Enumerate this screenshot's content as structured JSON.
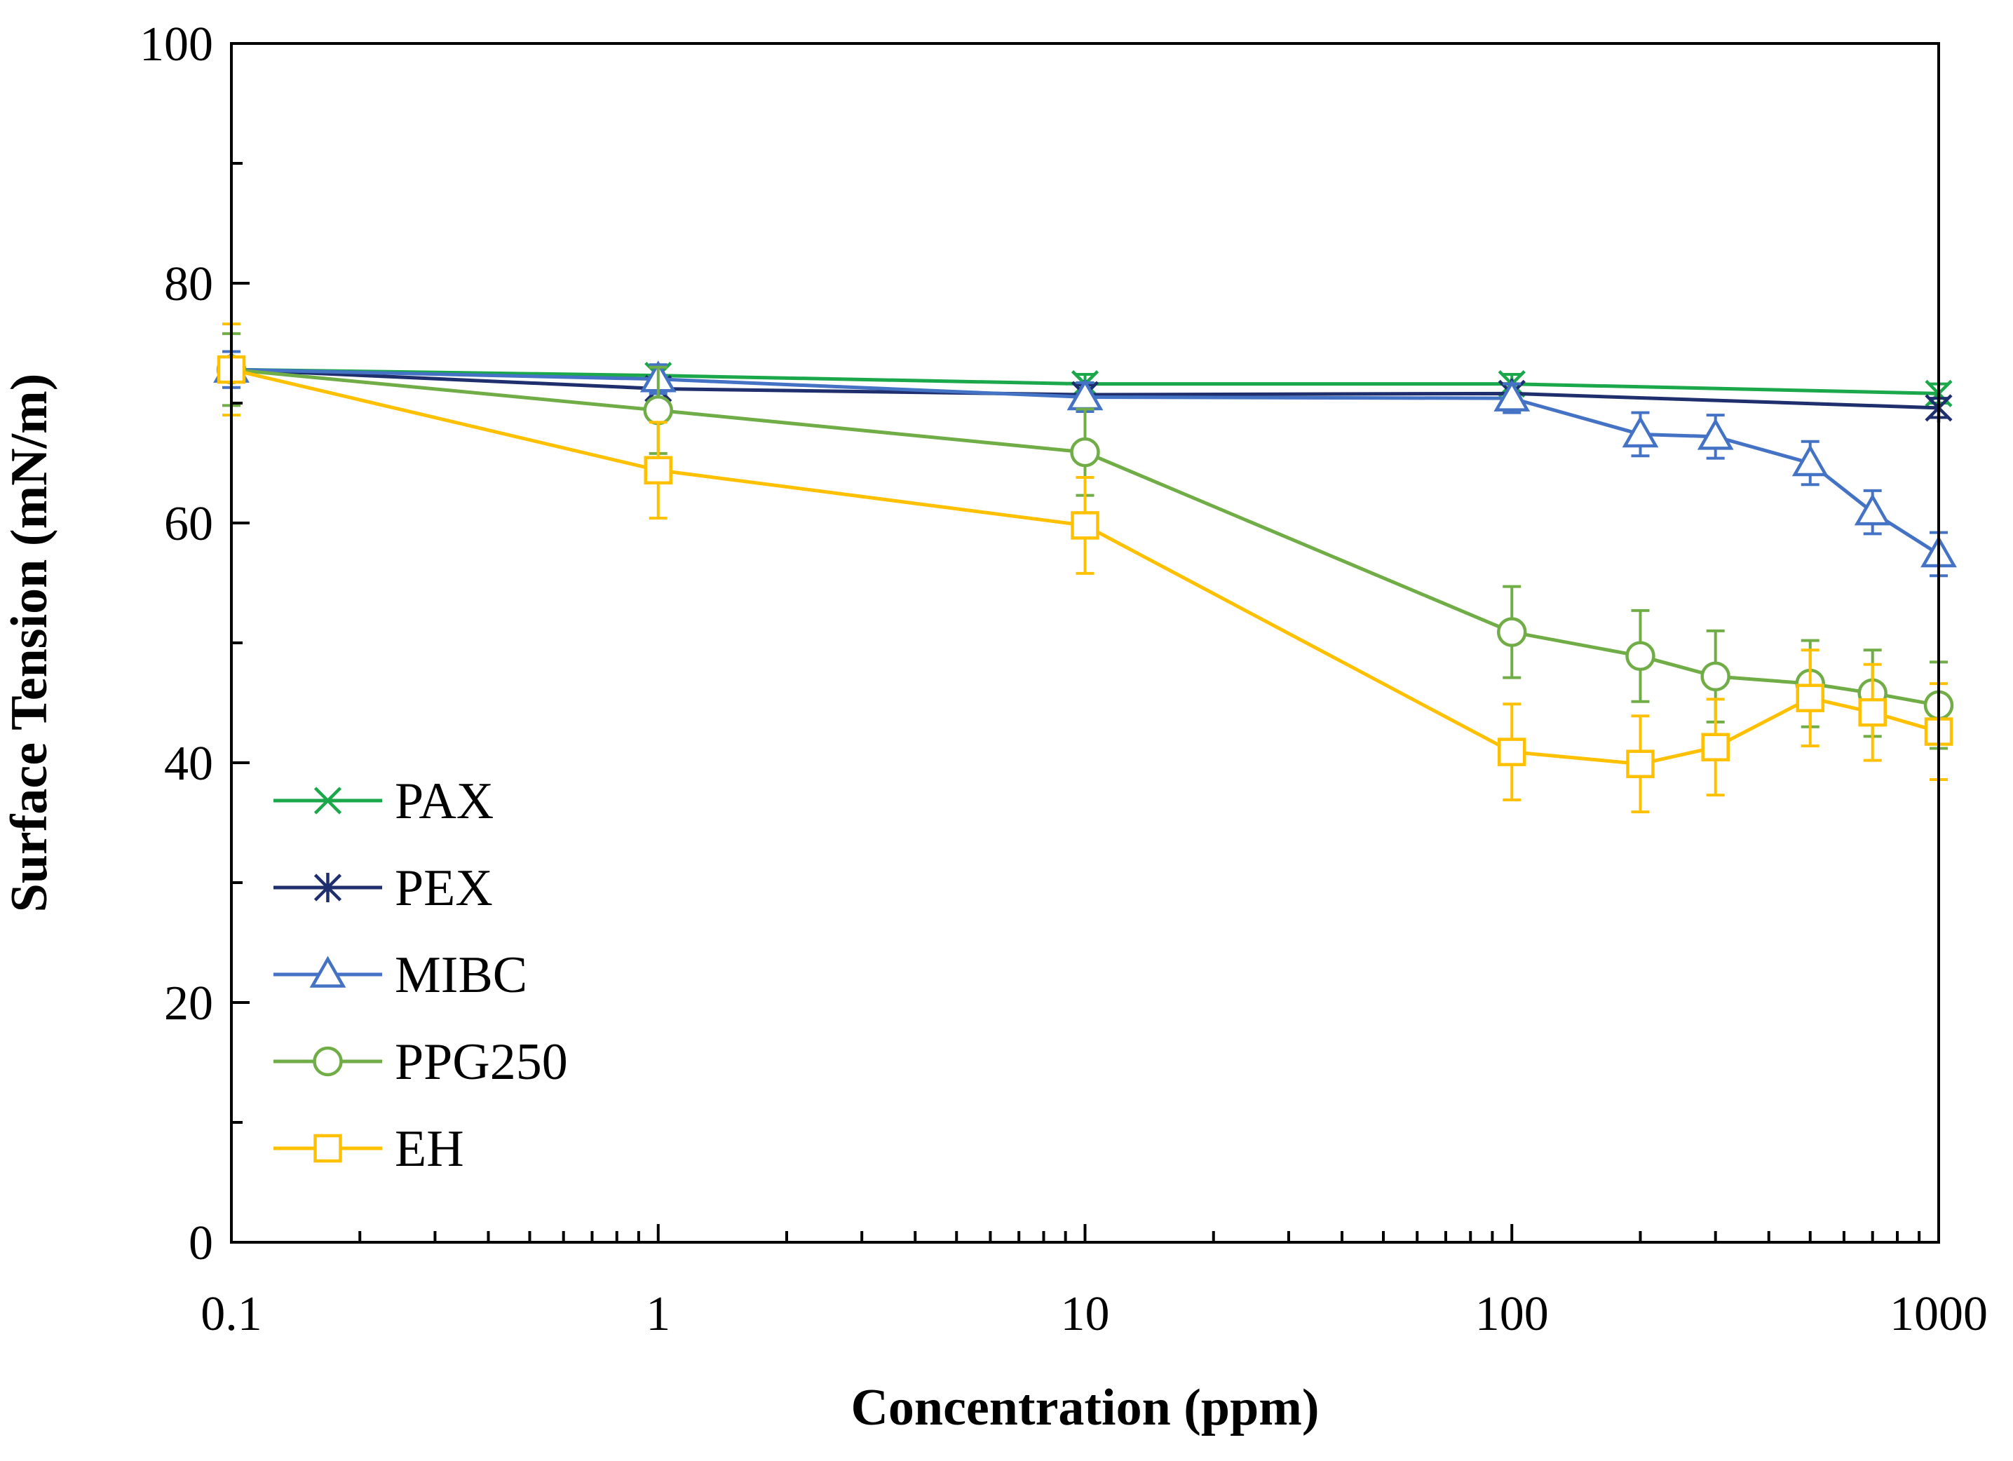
{
  "chart_data": {
    "type": "line",
    "title": "",
    "xlabel": "Concentration (ppm)",
    "ylabel": "Surface Tension (mN/m)",
    "xscale": "log",
    "xlim": [
      0.1,
      1000
    ],
    "ylim": [
      0,
      100
    ],
    "xticks": [
      {
        "value": 0.1,
        "label": "0.1"
      },
      {
        "value": 1,
        "label": "1"
      },
      {
        "value": 10,
        "label": "10"
      },
      {
        "value": 100,
        "label": "100"
      },
      {
        "value": 1000,
        "label": "1000"
      }
    ],
    "yticks": [
      {
        "value": 0,
        "label": "0"
      },
      {
        "value": 20,
        "label": "20"
      },
      {
        "value": 40,
        "label": "40"
      },
      {
        "value": 60,
        "label": "60"
      },
      {
        "value": 80,
        "label": "80"
      },
      {
        "value": 100,
        "label": "100"
      }
    ],
    "y_minor_step": 10,
    "grid": false,
    "legend_position": "bottom-left",
    "series": [
      {
        "name": "PAX",
        "color": "#1aa84a",
        "marker": "x",
        "x": [
          0.1,
          1,
          10,
          100,
          1000
        ],
        "y": [
          72.8,
          72.3,
          71.6,
          71.6,
          70.8
        ],
        "err": [
          1.0,
          0.8,
          0.8,
          0.8,
          0.8
        ]
      },
      {
        "name": "PEX",
        "color": "#1f2f6e",
        "marker": "asterisk",
        "x": [
          0.1,
          1,
          10,
          100,
          1000
        ],
        "y": [
          72.8,
          71.2,
          70.7,
          70.8,
          69.6
        ],
        "err": [
          1.0,
          0.8,
          0.8,
          0.8,
          0.8
        ]
      },
      {
        "name": "MIBC",
        "color": "#4472c4",
        "marker": "triangle",
        "x": [
          0.1,
          1,
          10,
          100,
          200,
          300,
          500,
          700,
          1000
        ],
        "y": [
          72.8,
          72.0,
          70.5,
          70.4,
          67.4,
          67.2,
          65.0,
          60.9,
          57.4
        ],
        "err": [
          1.5,
          1.2,
          1.2,
          1.2,
          1.8,
          1.8,
          1.8,
          1.8,
          1.8
        ]
      },
      {
        "name": "PPG250",
        "color": "#70ad47",
        "marker": "circle",
        "x": [
          0.1,
          1,
          10,
          100,
          200,
          300,
          500,
          700,
          1000
        ],
        "y": [
          72.8,
          69.4,
          65.9,
          50.9,
          48.9,
          47.2,
          46.6,
          45.8,
          44.8
        ],
        "err": [
          3.0,
          3.6,
          3.6,
          3.8,
          3.8,
          3.8,
          3.6,
          3.6,
          3.6
        ]
      },
      {
        "name": "EH",
        "color": "#ffc000",
        "marker": "square",
        "x": [
          0.1,
          1,
          10,
          100,
          200,
          300,
          500,
          700,
          1000
        ],
        "y": [
          72.8,
          64.4,
          59.8,
          40.9,
          39.9,
          41.3,
          45.4,
          44.2,
          42.6
        ],
        "err": [
          3.8,
          4.0,
          4.0,
          4.0,
          4.0,
          4.0,
          4.0,
          4.0,
          4.0
        ]
      }
    ]
  }
}
